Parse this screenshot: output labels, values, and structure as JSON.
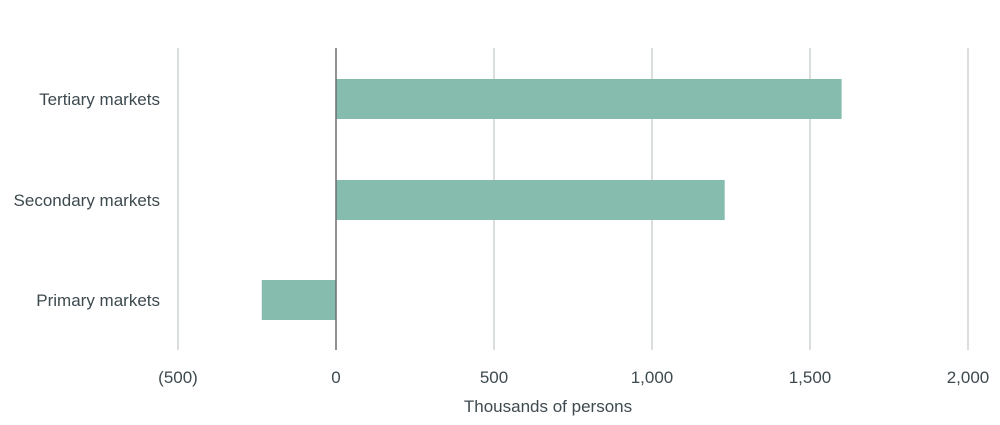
{
  "chart_data": {
    "type": "bar",
    "orientation": "horizontal",
    "categories": [
      "Tertiary markets",
      "Secondary markets",
      "Primary markets"
    ],
    "values": [
      1600,
      1230,
      -235
    ],
    "xlabel": "Thousands of persons",
    "ylabel": "",
    "xlim": [
      -500,
      2000
    ],
    "xticks": [
      -500,
      0,
      500,
      1000,
      1500,
      2000
    ],
    "xtick_labels": [
      "(500)",
      "0",
      "500",
      "1,000",
      "1,500",
      "2,000"
    ],
    "grid": "vertical",
    "legend": "none",
    "colors": {
      "bar": "#85bcae",
      "grid": "#cfd4d3",
      "zero_line": "#6f6f6f",
      "text": "#3d4a4f"
    }
  }
}
